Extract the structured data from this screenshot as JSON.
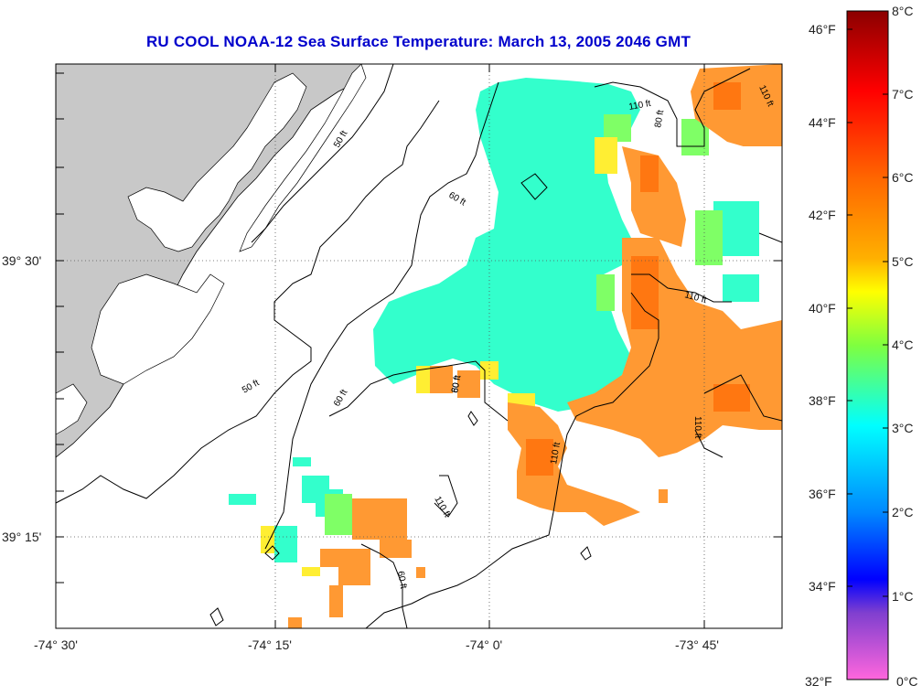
{
  "title": "RU COOL  NOAA-12  Sea Surface Temperature:  March 13, 2005 2046 GMT",
  "axes": {
    "lon_ticks": [
      "-74° 30'",
      "-74° 15'",
      "-74° 0'",
      "-73° 45'"
    ],
    "lat_ticks": [
      "39° 30'",
      "39° 15'"
    ]
  },
  "contour_labels": [
    "50 ft",
    "50 ft",
    "60 ft",
    "60 ft",
    "60 ft",
    "60 ft",
    "80 ft",
    "80 ft",
    "110 ft",
    "110 ft",
    "110 ft",
    "110 ft",
    "110 ft",
    "110 ft"
  ],
  "colorbar": {
    "fahrenheit": [
      "46°F",
      "44°F",
      "42°F",
      "40°F",
      "38°F",
      "36°F",
      "34°F",
      "32°F"
    ],
    "celsius": [
      "8°C",
      "7°C",
      "6°C",
      "5°C",
      "4°C",
      "3°C",
      "2°C",
      "1°C",
      "0°C"
    ],
    "gradient": [
      "#8b0000",
      "#ff0000",
      "#ff7f00",
      "#ffff00",
      "#7fff3f",
      "#00ffff",
      "#3f7fff",
      "#0000ff",
      "#7f3fcf",
      "#ff66cc"
    ]
  },
  "colors": {
    "land": "#c8c8c8",
    "cloud_or_nodata": "#ffffff",
    "cyan_water": "#33ffcc",
    "orange_water": "#ff9933"
  }
}
